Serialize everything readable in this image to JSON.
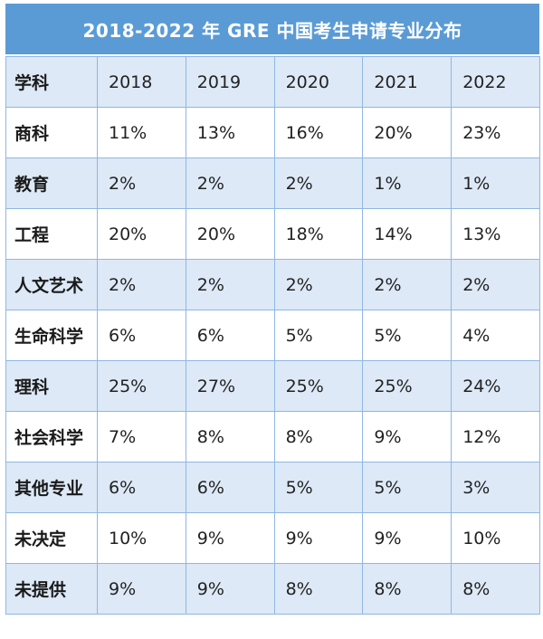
{
  "chart_data": {
    "type": "table",
    "title": "2018-2022 年 GRE 中国考生申请专业分布",
    "columns": [
      "学科",
      "2018",
      "2019",
      "2020",
      "2021",
      "2022"
    ],
    "rows": [
      {
        "subject": "商科",
        "values": [
          "11%",
          "13%",
          "16%",
          "20%",
          "23%"
        ]
      },
      {
        "subject": "教育",
        "values": [
          "2%",
          "2%",
          "2%",
          "1%",
          "1%"
        ]
      },
      {
        "subject": "工程",
        "values": [
          "20%",
          "20%",
          "18%",
          "14%",
          "13%"
        ]
      },
      {
        "subject": "人文艺术",
        "values": [
          "2%",
          "2%",
          "2%",
          "2%",
          "2%"
        ]
      },
      {
        "subject": "生命科学",
        "values": [
          "6%",
          "6%",
          "5%",
          "5%",
          "4%"
        ]
      },
      {
        "subject": "理科",
        "values": [
          "25%",
          "27%",
          "25%",
          "25%",
          "24%"
        ]
      },
      {
        "subject": "社会科学",
        "values": [
          "7%",
          "8%",
          "8%",
          "9%",
          "12%"
        ]
      },
      {
        "subject": "其他专业",
        "values": [
          "6%",
          "6%",
          "5%",
          "5%",
          "3%"
        ]
      },
      {
        "subject": "未决定",
        "values": [
          "10%",
          "9%",
          "9%",
          "9%",
          "10%"
        ]
      },
      {
        "subject": "未提供",
        "values": [
          "9%",
          "9%",
          "8%",
          "8%",
          "8%"
        ]
      }
    ],
    "colors": {
      "header_bar": "#5b9bd5",
      "shaded_row": "#dde9f7",
      "border": "#8fb7e3"
    }
  }
}
